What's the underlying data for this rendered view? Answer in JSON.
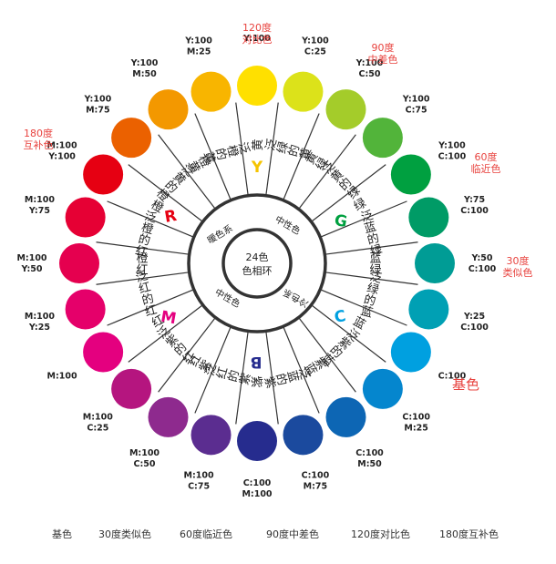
{
  "center": {
    "line1": "24色",
    "line2": "色相环"
  },
  "sectors": {
    "warm": "暖色系",
    "neutral_top": "中性色",
    "cool": "冷色系",
    "neutral_bottom": "中性色"
  },
  "hue_letters": {
    "Y": "Y",
    "G": "G",
    "C": "C",
    "B": "B",
    "M": "M",
    "R": "R"
  },
  "hues": [
    {
      "name": "黄",
      "code": [
        "Y:100"
      ],
      "color": "#FFE000"
    },
    {
      "name": "泛绿的黄",
      "code": [
        "Y:100",
        "C:25"
      ],
      "color": "#DCE21A"
    },
    {
      "name": "黄绿",
      "code": [
        "Y:100",
        "C:50"
      ],
      "color": "#A4CC2A"
    },
    {
      "name": "泛黄的绿",
      "code": [
        "Y:100",
        "C:75"
      ],
      "color": "#52B43A"
    },
    {
      "name": "绿",
      "code": [
        "Y:100",
        "C:100"
      ],
      "color": "#00A040"
    },
    {
      "name": "泛蓝的绿",
      "code": [
        "Y:75",
        "C:100"
      ],
      "color": "#009B66"
    },
    {
      "name": "蓝绿",
      "code": [
        "Y:50",
        "C:100"
      ],
      "color": "#009C95"
    },
    {
      "name": "泛绿的蓝",
      "code": [
        "Y:25",
        "C:100"
      ],
      "color": "#00A0B4"
    },
    {
      "name": "蓝",
      "code": [
        "C:100"
      ],
      "color": "#00A0E0"
    },
    {
      "name": "泛紫的蓝",
      "code": [
        "C:100",
        "M:25"
      ],
      "color": "#0586CE"
    },
    {
      "name": "紫蓝",
      "code": [
        "C:100",
        "M:50"
      ],
      "color": "#0D66B4"
    },
    {
      "name": "泛蓝的紫",
      "code": [
        "C:100",
        "M:75"
      ],
      "color": "#1B4A9E"
    },
    {
      "name": "紫",
      "code": [
        "C:100",
        "M:100"
      ],
      "color": "#262C8E"
    },
    {
      "name": "泛红的紫",
      "code": [
        "M:100",
        "C:75"
      ],
      "color": "#5B2D90"
    },
    {
      "name": "红紫",
      "code": [
        "M:100",
        "C:50"
      ],
      "color": "#8E2A8E"
    },
    {
      "name": "泛紫的红",
      "code": [
        "M:100",
        "C:25"
      ],
      "color": "#B5157F"
    },
    {
      "name": "红",
      "code": [
        "M:100"
      ],
      "color": "#E4007F"
    },
    {
      "name": "泛红的红",
      "code": [
        "M:100",
        "Y:25"
      ],
      "color": "#E5006A"
    },
    {
      "name": "橙红",
      "code": [
        "M:100",
        "Y:50"
      ],
      "color": "#E5004F"
    },
    {
      "name": "泛橙的红",
      "code": [
        "M:100",
        "Y:75"
      ],
      "color": "#E60034"
    },
    {
      "name": "橙",
      "code": [
        "M:100",
        "Y:100"
      ],
      "color": "#E60012"
    },
    {
      "name": "泛黄的橙",
      "code": [
        "Y:100",
        "M:75"
      ],
      "color": "#EB6100"
    },
    {
      "name": "橙黄",
      "code": [
        "Y:100",
        "M:50"
      ],
      "color": "#F39800"
    },
    {
      "name": "泛橙的黄",
      "code": [
        "Y:100",
        "M:25"
      ],
      "color": "#F8B500"
    }
  ],
  "annotations": [
    {
      "text": [
        "120度",
        "对比色"
      ]
    },
    {
      "text": [
        "90度",
        "中差色"
      ]
    },
    {
      "text": [
        "60度",
        "临近色"
      ]
    },
    {
      "text": [
        "30度",
        "类似色"
      ]
    },
    {
      "text": [
        "基色"
      ]
    },
    {
      "text": [
        "180度",
        "互补色"
      ]
    }
  ],
  "legend": [
    "基色",
    "30度类似色",
    "60度临近色",
    "90度中差色",
    "120度对比色",
    "180度互补色"
  ],
  "colors": {
    "annotation": "#E8433F",
    "line": "#333333",
    "text": "#222222"
  }
}
